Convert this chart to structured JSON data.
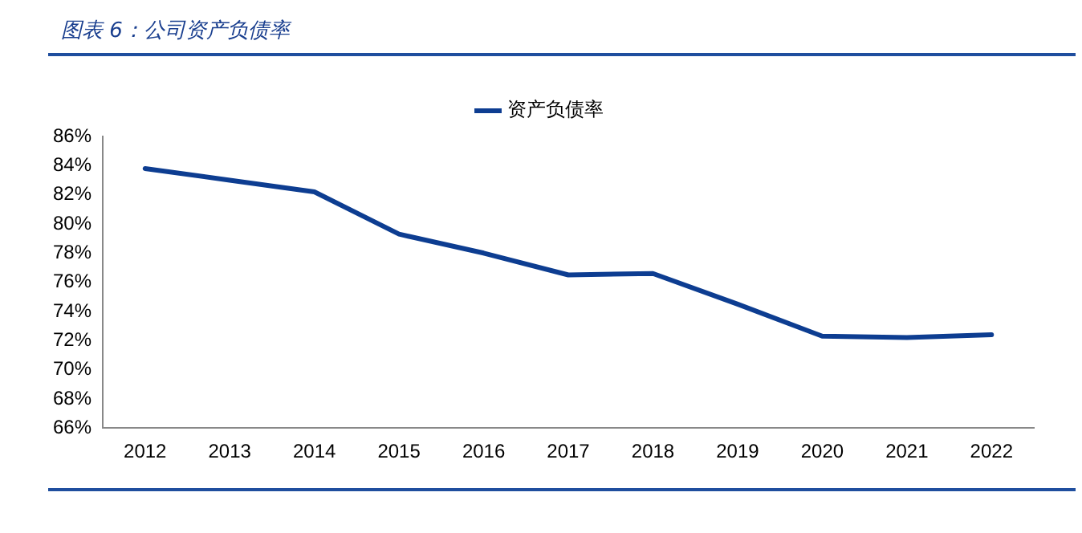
{
  "chart_data": {
    "type": "line",
    "title": "图表 6：公司资产负债率",
    "categories": [
      "2012",
      "2013",
      "2014",
      "2015",
      "2016",
      "2017",
      "2018",
      "2019",
      "2020",
      "2021",
      "2022"
    ],
    "series": [
      {
        "name": "资产负债率",
        "color": "#0d3d91",
        "values": [
          83.8,
          83.0,
          82.2,
          79.3,
          78.0,
          76.5,
          76.6,
          74.5,
          72.3,
          72.2,
          72.4
        ]
      }
    ],
    "ylim": [
      66,
      86
    ],
    "yticks": [
      {
        "value": 66,
        "label": "66%"
      },
      {
        "value": 68,
        "label": "68%"
      },
      {
        "value": 70,
        "label": "70%"
      },
      {
        "value": 72,
        "label": "72%"
      },
      {
        "value": 74,
        "label": "74%"
      },
      {
        "value": 76,
        "label": "76%"
      },
      {
        "value": 78,
        "label": "78%"
      },
      {
        "value": 80,
        "label": "80%"
      },
      {
        "value": 82,
        "label": "82%"
      },
      {
        "value": 84,
        "label": "84%"
      },
      {
        "value": 86,
        "label": "86%"
      }
    ],
    "grid": false,
    "legend": "top",
    "marker": "none",
    "line_style": "solid"
  }
}
